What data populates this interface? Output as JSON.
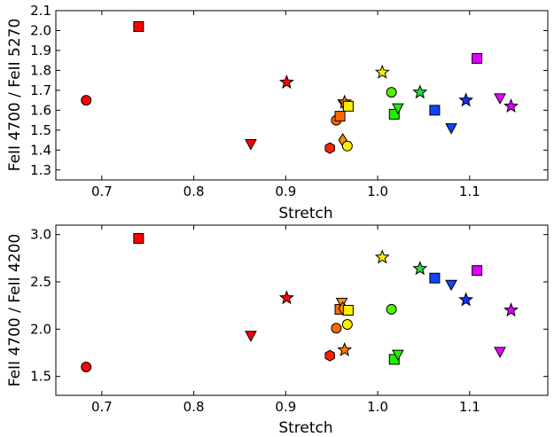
{
  "chart_data": [
    {
      "type": "scatter",
      "xlabel": "Stretch",
      "ylabel": "FeII 4700 / FeII 5270",
      "xlim": [
        0.65,
        1.185
      ],
      "ylim": [
        1.25,
        2.1
      ],
      "xticks": [
        "0.7",
        "0.8",
        "0.9",
        "1.0",
        "1.1"
      ],
      "yticks": [
        "1.3",
        "1.4",
        "1.5",
        "1.6",
        "1.7",
        "1.8",
        "1.9",
        "2.0",
        "2.1"
      ],
      "grid": false,
      "points": [
        {
          "x": 0.683,
          "y": 1.65,
          "marker": "circle",
          "color": "#ff0000"
        },
        {
          "x": 0.74,
          "y": 2.02,
          "marker": "square",
          "color": "#ff0000"
        },
        {
          "x": 0.862,
          "y": 1.43,
          "marker": "triangle-down",
          "color": "#ff0000"
        },
        {
          "x": 0.901,
          "y": 1.74,
          "marker": "star",
          "color": "#ff0000"
        },
        {
          "x": 0.948,
          "y": 1.41,
          "marker": "hexagon",
          "color": "#ff2200"
        },
        {
          "x": 0.955,
          "y": 1.55,
          "marker": "circle",
          "color": "#ff6a00"
        },
        {
          "x": 0.959,
          "y": 1.57,
          "marker": "square",
          "color": "#ff6a00"
        },
        {
          "x": 0.962,
          "y": 1.45,
          "marker": "diamond",
          "color": "#ff8c00"
        },
        {
          "x": 0.963,
          "y": 1.63,
          "marker": "triangle-down",
          "color": "#ff8c00"
        },
        {
          "x": 0.964,
          "y": 1.64,
          "marker": "star",
          "color": "#ff7a00"
        },
        {
          "x": 0.967,
          "y": 1.42,
          "marker": "circle",
          "color": "#ffee00"
        },
        {
          "x": 0.968,
          "y": 1.62,
          "marker": "square",
          "color": "#ffee00"
        },
        {
          "x": 1.005,
          "y": 1.79,
          "marker": "star",
          "color": "#ffee00"
        },
        {
          "x": 1.015,
          "y": 1.69,
          "marker": "circle",
          "color": "#55ee00"
        },
        {
          "x": 1.018,
          "y": 1.58,
          "marker": "square",
          "color": "#22ee00"
        },
        {
          "x": 1.022,
          "y": 1.61,
          "marker": "triangle-down",
          "color": "#22ee00"
        },
        {
          "x": 1.046,
          "y": 1.69,
          "marker": "star",
          "color": "#22dd44"
        },
        {
          "x": 1.062,
          "y": 1.6,
          "marker": "square",
          "color": "#1144ff"
        },
        {
          "x": 1.08,
          "y": 1.51,
          "marker": "triangle-down",
          "color": "#1144ff"
        },
        {
          "x": 1.096,
          "y": 1.65,
          "marker": "star",
          "color": "#1133ff"
        },
        {
          "x": 1.108,
          "y": 1.86,
          "marker": "square",
          "color": "#dd00ff"
        },
        {
          "x": 1.133,
          "y": 1.66,
          "marker": "triangle-down",
          "color": "#ee00ff"
        },
        {
          "x": 1.145,
          "y": 1.62,
          "marker": "star",
          "color": "#dd00ff"
        }
      ]
    },
    {
      "type": "scatter",
      "xlabel": "Stretch",
      "ylabel": "FeII 4700 / FeII 4200",
      "xlim": [
        0.65,
        1.185
      ],
      "ylim": [
        1.3,
        3.1
      ],
      "xticks": [
        "0.7",
        "0.8",
        "0.9",
        "1.0",
        "1.1"
      ],
      "yticks": [
        "1.5",
        "2.0",
        "2.5",
        "3.0"
      ],
      "grid": false,
      "points": [
        {
          "x": 0.683,
          "y": 1.6,
          "marker": "circle",
          "color": "#ff0000"
        },
        {
          "x": 0.74,
          "y": 2.96,
          "marker": "square",
          "color": "#ff0000"
        },
        {
          "x": 0.862,
          "y": 1.93,
          "marker": "triangle-down",
          "color": "#ff0000"
        },
        {
          "x": 0.901,
          "y": 2.33,
          "marker": "star",
          "color": "#ff0000"
        },
        {
          "x": 0.948,
          "y": 1.72,
          "marker": "hexagon",
          "color": "#ff2200"
        },
        {
          "x": 0.955,
          "y": 2.01,
          "marker": "circle",
          "color": "#ff6a00"
        },
        {
          "x": 0.959,
          "y": 2.21,
          "marker": "square",
          "color": "#ff6a00"
        },
        {
          "x": 0.961,
          "y": 2.28,
          "marker": "triangle-down",
          "color": "#ff8c00"
        },
        {
          "x": 0.962,
          "y": 2.22,
          "marker": "diamond",
          "color": "#ff8c00"
        },
        {
          "x": 0.964,
          "y": 1.78,
          "marker": "star",
          "color": "#ff7a00"
        },
        {
          "x": 0.967,
          "y": 2.05,
          "marker": "circle",
          "color": "#ffee00"
        },
        {
          "x": 0.968,
          "y": 2.2,
          "marker": "square",
          "color": "#ffee00"
        },
        {
          "x": 1.005,
          "y": 2.76,
          "marker": "star",
          "color": "#ffee00"
        },
        {
          "x": 1.015,
          "y": 2.21,
          "marker": "circle",
          "color": "#55ee00"
        },
        {
          "x": 1.018,
          "y": 1.68,
          "marker": "square",
          "color": "#22ee00"
        },
        {
          "x": 1.022,
          "y": 1.73,
          "marker": "triangle-down",
          "color": "#22ee00"
        },
        {
          "x": 1.046,
          "y": 2.64,
          "marker": "star",
          "color": "#22dd44"
        },
        {
          "x": 1.062,
          "y": 2.54,
          "marker": "square",
          "color": "#1144ff"
        },
        {
          "x": 1.08,
          "y": 2.47,
          "marker": "triangle-down",
          "color": "#1144ff"
        },
        {
          "x": 1.096,
          "y": 2.31,
          "marker": "star",
          "color": "#1133ff"
        },
        {
          "x": 1.108,
          "y": 2.62,
          "marker": "square",
          "color": "#dd00ff"
        },
        {
          "x": 1.133,
          "y": 1.76,
          "marker": "triangle-down",
          "color": "#ee00ff"
        },
        {
          "x": 1.145,
          "y": 2.2,
          "marker": "star",
          "color": "#dd00ff"
        }
      ]
    }
  ]
}
